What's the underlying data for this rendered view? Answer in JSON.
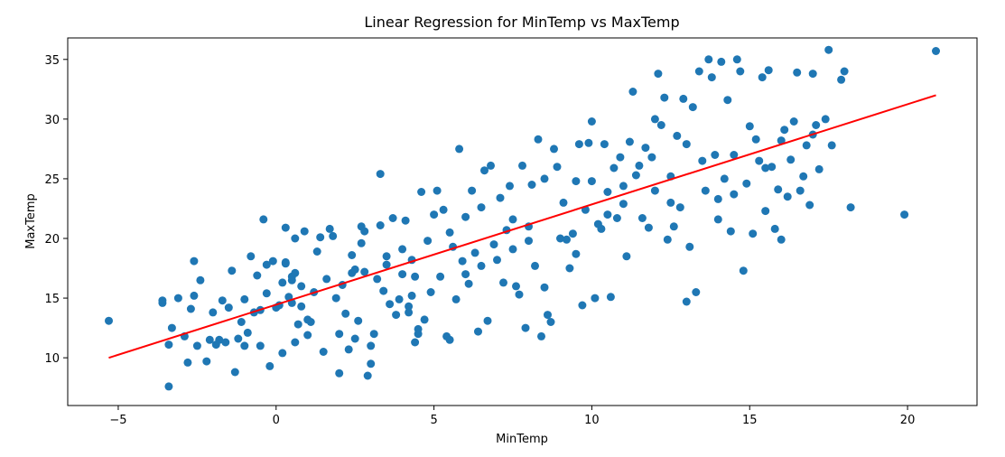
{
  "chart_data": {
    "type": "scatter",
    "title": "Linear Regression for MinTemp vs MaxTemp",
    "xlabel": "MinTemp",
    "ylabel": "MaxTemp",
    "xlim": [
      -6.6,
      22.2
    ],
    "ylim": [
      6.0,
      36.8
    ],
    "xticks": [
      -5,
      0,
      5,
      10,
      15,
      20
    ],
    "yticks": [
      10,
      15,
      20,
      25,
      30,
      35
    ],
    "grid": false,
    "colors": {
      "points": "#1f77b4",
      "line": "#ff0000"
    },
    "regression_line": {
      "x": [
        -5.3,
        20.9
      ],
      "y": [
        10.0,
        32.0
      ]
    },
    "points": [
      [
        -5.3,
        13.1
      ],
      [
        -3.6,
        14.6
      ],
      [
        -3.6,
        14.8
      ],
      [
        -3.4,
        11.1
      ],
      [
        -3.4,
        7.6
      ],
      [
        -3.3,
        12.5
      ],
      [
        -3.1,
        15.0
      ],
      [
        -2.9,
        11.8
      ],
      [
        -2.8,
        9.6
      ],
      [
        -2.7,
        14.1
      ],
      [
        -2.6,
        15.2
      ],
      [
        -2.6,
        18.1
      ],
      [
        -2.5,
        11.0
      ],
      [
        -2.4,
        16.5
      ],
      [
        -2.2,
        9.7
      ],
      [
        -2.1,
        11.5
      ],
      [
        -2.0,
        13.8
      ],
      [
        -1.9,
        11.1
      ],
      [
        -1.8,
        11.5
      ],
      [
        -1.7,
        14.8
      ],
      [
        -1.6,
        11.3
      ],
      [
        -1.5,
        14.2
      ],
      [
        -1.4,
        17.3
      ],
      [
        -1.3,
        8.8
      ],
      [
        -1.2,
        11.6
      ],
      [
        -1.1,
        13.0
      ],
      [
        -1.0,
        11.0
      ],
      [
        -0.9,
        12.1
      ],
      [
        -0.8,
        18.5
      ],
      [
        -0.7,
        13.8
      ],
      [
        -0.6,
        16.9
      ],
      [
        -0.5,
        14.0
      ],
      [
        -0.5,
        11.0
      ],
      [
        -0.4,
        21.6
      ],
      [
        -0.3,
        15.4
      ],
      [
        -0.3,
        17.8
      ],
      [
        -0.2,
        9.3
      ],
      [
        -0.1,
        18.1
      ],
      [
        0.0,
        14.2
      ],
      [
        0.1,
        14.4
      ],
      [
        0.2,
        10.4
      ],
      [
        0.2,
        16.3
      ],
      [
        0.3,
        17.9
      ],
      [
        0.3,
        18.0
      ],
      [
        0.3,
        20.9
      ],
      [
        0.4,
        15.1
      ],
      [
        0.5,
        16.5
      ],
      [
        0.5,
        16.8
      ],
      [
        0.6,
        17.1
      ],
      [
        0.6,
        20.0
      ],
      [
        0.6,
        11.3
      ],
      [
        0.7,
        12.8
      ],
      [
        0.8,
        14.3
      ],
      [
        0.8,
        16.0
      ],
      [
        0.9,
        20.6
      ],
      [
        1.0,
        11.9
      ],
      [
        1.1,
        13.0
      ],
      [
        1.2,
        15.5
      ],
      [
        1.3,
        18.9
      ],
      [
        1.4,
        20.1
      ],
      [
        1.5,
        10.5
      ],
      [
        1.6,
        16.6
      ],
      [
        1.7,
        20.8
      ],
      [
        1.8,
        20.2
      ],
      [
        1.9,
        15.0
      ],
      [
        2.0,
        8.7
      ],
      [
        2.1,
        16.1
      ],
      [
        2.2,
        13.7
      ],
      [
        2.3,
        10.7
      ],
      [
        2.4,
        17.1
      ],
      [
        2.4,
        18.6
      ],
      [
        2.5,
        11.6
      ],
      [
        2.6,
        13.1
      ],
      [
        2.7,
        19.6
      ],
      [
        2.7,
        21.0
      ],
      [
        2.8,
        17.2
      ],
      [
        2.8,
        20.6
      ],
      [
        2.9,
        8.5
      ],
      [
        3.0,
        9.5
      ],
      [
        3.0,
        11.0
      ],
      [
        3.1,
        12.0
      ],
      [
        3.2,
        16.6
      ],
      [
        3.3,
        21.1
      ],
      [
        3.3,
        25.4
      ],
      [
        3.4,
        15.6
      ],
      [
        3.5,
        18.5
      ],
      [
        3.6,
        14.5
      ],
      [
        3.7,
        21.7
      ],
      [
        3.8,
        13.6
      ],
      [
        3.9,
        14.9
      ],
      [
        4.0,
        17.0
      ],
      [
        4.1,
        21.5
      ],
      [
        4.2,
        13.8
      ],
      [
        4.2,
        14.3
      ],
      [
        4.3,
        15.2
      ],
      [
        4.3,
        18.2
      ],
      [
        4.4,
        16.8
      ],
      [
        4.4,
        11.3
      ],
      [
        4.5,
        12.0
      ],
      [
        4.6,
        23.9
      ],
      [
        4.7,
        13.2
      ],
      [
        4.8,
        19.8
      ],
      [
        4.9,
        15.5
      ],
      [
        5.0,
        22.0
      ],
      [
        5.1,
        24.0
      ],
      [
        5.2,
        16.8
      ],
      [
        5.3,
        22.4
      ],
      [
        5.4,
        11.8
      ],
      [
        5.5,
        11.5
      ],
      [
        5.6,
        19.3
      ],
      [
        5.7,
        14.9
      ],
      [
        5.8,
        27.5
      ],
      [
        5.9,
        18.1
      ],
      [
        6.0,
        21.8
      ],
      [
        6.1,
        16.2
      ],
      [
        6.2,
        24.0
      ],
      [
        6.3,
        18.8
      ],
      [
        6.4,
        12.2
      ],
      [
        6.5,
        17.7
      ],
      [
        6.6,
        25.7
      ],
      [
        6.7,
        13.1
      ],
      [
        6.8,
        26.1
      ],
      [
        6.9,
        19.5
      ],
      [
        7.0,
        18.2
      ],
      [
        7.1,
        23.4
      ],
      [
        7.2,
        16.3
      ],
      [
        7.3,
        20.7
      ],
      [
        7.4,
        24.4
      ],
      [
        7.5,
        19.1
      ],
      [
        7.6,
        16.0
      ],
      [
        7.7,
        15.3
      ],
      [
        7.8,
        26.1
      ],
      [
        7.9,
        12.5
      ],
      [
        8.0,
        19.8
      ],
      [
        8.1,
        24.5
      ],
      [
        8.2,
        17.7
      ],
      [
        8.3,
        28.3
      ],
      [
        8.4,
        11.8
      ],
      [
        8.5,
        25.0
      ],
      [
        8.6,
        13.6
      ],
      [
        8.7,
        13.0
      ],
      [
        8.8,
        27.5
      ],
      [
        8.9,
        26.0
      ],
      [
        9.0,
        20.0
      ],
      [
        9.1,
        23.0
      ],
      [
        9.2,
        19.9
      ],
      [
        9.3,
        17.5
      ],
      [
        9.4,
        20.4
      ],
      [
        9.5,
        18.7
      ],
      [
        9.6,
        27.9
      ],
      [
        9.7,
        14.4
      ],
      [
        9.8,
        22.4
      ],
      [
        9.9,
        28.0
      ],
      [
        10.0,
        29.8
      ],
      [
        10.1,
        15.0
      ],
      [
        10.2,
        21.2
      ],
      [
        10.3,
        20.8
      ],
      [
        10.4,
        27.9
      ],
      [
        10.5,
        23.9
      ],
      [
        10.6,
        15.1
      ],
      [
        10.7,
        25.9
      ],
      [
        10.8,
        21.7
      ],
      [
        10.9,
        26.8
      ],
      [
        11.0,
        24.4
      ],
      [
        11.1,
        18.5
      ],
      [
        11.2,
        28.1
      ],
      [
        11.3,
        32.3
      ],
      [
        11.4,
        25.3
      ],
      [
        11.5,
        26.1
      ],
      [
        11.6,
        21.7
      ],
      [
        11.7,
        27.6
      ],
      [
        11.8,
        20.9
      ],
      [
        11.9,
        26.8
      ],
      [
        12.0,
        24.0
      ],
      [
        12.1,
        33.8
      ],
      [
        12.2,
        29.5
      ],
      [
        12.3,
        31.8
      ],
      [
        12.4,
        19.9
      ],
      [
        12.5,
        25.2
      ],
      [
        12.6,
        21.0
      ],
      [
        12.7,
        28.6
      ],
      [
        12.8,
        22.6
      ],
      [
        12.9,
        31.7
      ],
      [
        13.0,
        14.7
      ],
      [
        13.1,
        19.3
      ],
      [
        13.2,
        31.0
      ],
      [
        13.3,
        15.5
      ],
      [
        13.4,
        34.0
      ],
      [
        13.5,
        26.5
      ],
      [
        13.6,
        24.0
      ],
      [
        13.7,
        35.0
      ],
      [
        13.8,
        33.5
      ],
      [
        13.9,
        27.0
      ],
      [
        14.0,
        21.6
      ],
      [
        14.1,
        34.8
      ],
      [
        14.2,
        25.0
      ],
      [
        14.3,
        31.6
      ],
      [
        14.4,
        20.6
      ],
      [
        14.5,
        27.0
      ],
      [
        14.6,
        35.0
      ],
      [
        14.7,
        34.0
      ],
      [
        14.8,
        17.3
      ],
      [
        14.9,
        24.6
      ],
      [
        15.0,
        29.4
      ],
      [
        15.1,
        20.4
      ],
      [
        15.2,
        28.3
      ],
      [
        15.3,
        26.5
      ],
      [
        15.4,
        33.5
      ],
      [
        15.5,
        22.3
      ],
      [
        15.6,
        34.1
      ],
      [
        15.7,
        26.0
      ],
      [
        15.8,
        20.8
      ],
      [
        15.9,
        24.1
      ],
      [
        16.0,
        19.9
      ],
      [
        16.1,
        29.1
      ],
      [
        16.2,
        23.5
      ],
      [
        16.3,
        26.6
      ],
      [
        16.4,
        29.8
      ],
      [
        16.5,
        33.9
      ],
      [
        16.6,
        24.0
      ],
      [
        16.7,
        25.2
      ],
      [
        16.8,
        27.8
      ],
      [
        16.9,
        22.8
      ],
      [
        17.0,
        33.8
      ],
      [
        17.1,
        29.5
      ],
      [
        17.2,
        25.8
      ],
      [
        17.4,
        30.0
      ],
      [
        17.5,
        35.8
      ],
      [
        17.6,
        27.8
      ],
      [
        17.9,
        33.3
      ],
      [
        18.0,
        34.0
      ],
      [
        18.2,
        22.6
      ],
      [
        19.9,
        22.0
      ],
      [
        20.9,
        35.7
      ],
      [
        1.0,
        13.2
      ],
      [
        2.5,
        17.4
      ],
      [
        4.0,
        19.1
      ],
      [
        6.5,
        22.6
      ],
      [
        8.0,
        21.0
      ],
      [
        9.5,
        24.8
      ],
      [
        11.0,
        22.9
      ],
      [
        12.5,
        23.0
      ],
      [
        14.0,
        23.3
      ],
      [
        15.5,
        25.9
      ],
      [
        3.5,
        17.8
      ],
      [
        5.5,
        20.5
      ],
      [
        7.5,
        21.6
      ],
      [
        10.5,
        22.0
      ],
      [
        13.0,
        27.9
      ],
      [
        16.0,
        28.2
      ],
      [
        -1.0,
        14.9
      ],
      [
        0.5,
        14.6
      ],
      [
        2.0,
        12.0
      ],
      [
        4.5,
        12.4
      ],
      [
        6.0,
        17.0
      ],
      [
        8.5,
        15.9
      ],
      [
        10.0,
        24.8
      ],
      [
        12.0,
        30.0
      ],
      [
        14.5,
        23.7
      ],
      [
        17.0,
        28.7
      ]
    ]
  }
}
